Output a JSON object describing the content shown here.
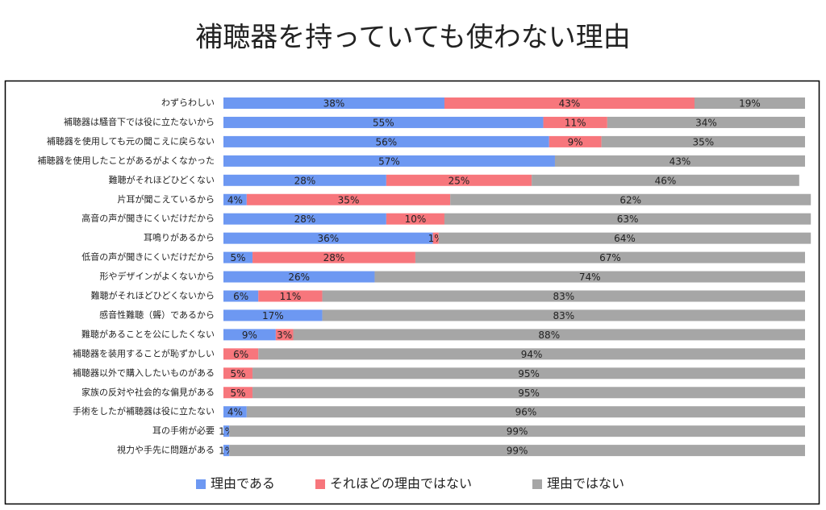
{
  "chart_data": {
    "type": "stacked_barh",
    "title": "補聴器を持っていても使わない理由",
    "categories": [
      "わずらわしい",
      "補聴器は騒音下では役に立たないから",
      "補聴器を使用しても元の聞こえに戻らない",
      "補聴器を使用したことがあるがよくなかった",
      "難聴がそれほどひどくない",
      "片耳が聞こえているから",
      "高音の声が聞きにくいだけだから",
      "耳鳴りがあるから",
      "低音の声が聞きにくいだけだから",
      "形やデザインがよくないから",
      "難聴がそれほどひどくないから",
      "感音性難聴（聾）であるから",
      "難聴があることを公にしたくない",
      "補聴器を装用することが恥ずかしい",
      "補聴器以外で購入したいものがある",
      "家族の反対や社会的な偏見がある",
      "手術をしたが補聴器は役に立たない",
      "耳の手術が必要",
      "視力や手先に問題がある"
    ],
    "xlim": [
      0,
      100
    ],
    "series": [
      {
        "name": "理由である",
        "color": "#6d98f2",
        "values": [
          38,
          55,
          56,
          57,
          28,
          4,
          28,
          36,
          5,
          26,
          6,
          17,
          9,
          0,
          0,
          0,
          4,
          1,
          1
        ],
        "value_labels": [
          "38%",
          "55%",
          "56%",
          "57%",
          "28%",
          "4%",
          "28%",
          "36%",
          "5%",
          "26%",
          "6%",
          "17%",
          "9%",
          null,
          null,
          null,
          "4%",
          "1%",
          "1%"
        ]
      },
      {
        "name": "それほどの理由ではない",
        "color": "#f7767c",
        "values": [
          43,
          11,
          9,
          0,
          25,
          35,
          10,
          1,
          28,
          0,
          11,
          0,
          3,
          6,
          5,
          5,
          0,
          0,
          0
        ],
        "value_labels": [
          "43%",
          "11%",
          "9%",
          null,
          "25%",
          "35%",
          "10%",
          "1%",
          "28%",
          null,
          "11%",
          null,
          "3%",
          "6%",
          "5%",
          "5%",
          null,
          null,
          null
        ]
      },
      {
        "name": "理由ではない",
        "color": "#a6a6a6",
        "values": [
          19,
          34,
          35,
          43,
          46,
          62,
          63,
          64,
          67,
          74,
          83,
          83,
          88,
          94,
          95,
          95,
          96,
          99,
          99
        ],
        "value_labels": [
          "19%",
          "34%",
          "35%",
          "43%",
          "46%",
          "62%",
          "63%",
          "64%",
          "67%",
          "74%",
          "83%",
          "83%",
          "88%",
          "94%",
          "95%",
          "95%",
          "96%",
          "99%",
          "99%"
        ]
      }
    ],
    "legend": "bottom"
  }
}
